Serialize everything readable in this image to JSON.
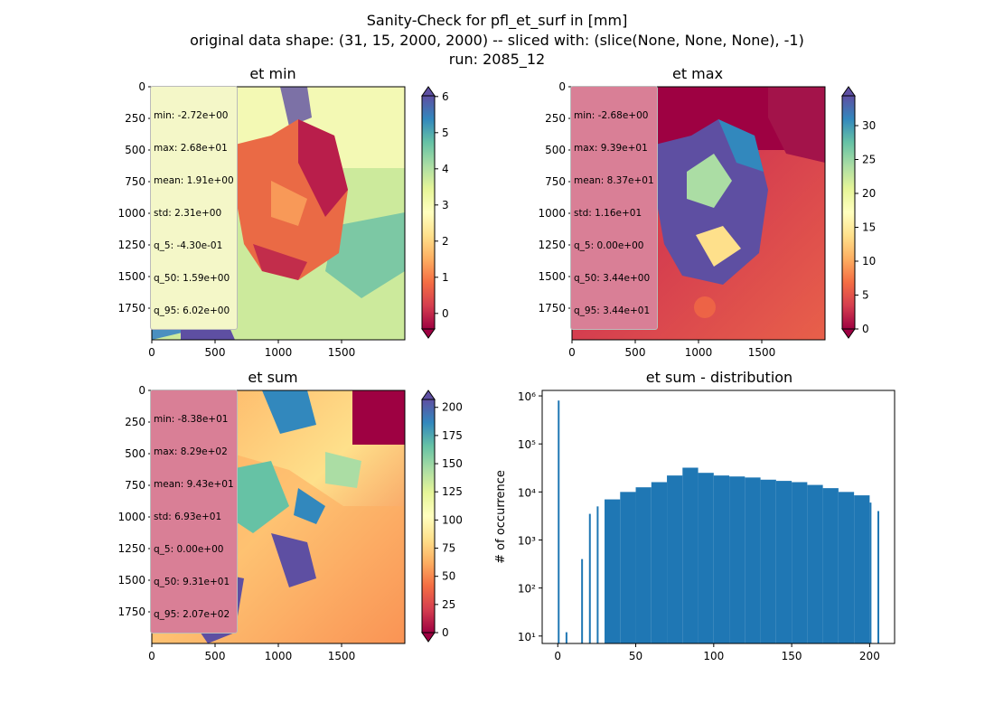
{
  "header": {
    "line1": "Sanity-Check for pfl_et_surf in [mm]",
    "line2": "original data shape: (31, 15, 2000, 2000) -- sliced with: (slice(None, None, None), -1)",
    "line3": "run: 2085_12"
  },
  "panels": [
    {
      "title": "et min",
      "stats": [
        "min: -2.72e+00",
        "max: 2.68e+01",
        "mean: 1.91e+00",
        "std: 2.31e+00",
        "q_5: -4.30e-01",
        "q_50: 1.59e+00",
        "q_95: 6.02e+00"
      ],
      "stats_bg": "#f4f7c8",
      "colorbar_ticks": [
        "6",
        "5",
        "4",
        "3",
        "2",
        "1",
        "0"
      ],
      "xticks": [
        "0",
        "500",
        "1000",
        "1500"
      ],
      "yticks": [
        "1750",
        "1500",
        "1250",
        "1000",
        "750",
        "500",
        "250",
        "0"
      ]
    },
    {
      "title": "et max",
      "stats": [
        "min: -2.68e+00",
        "max: 9.39e+01",
        "mean: 8.37e+01",
        "std: 1.16e+01",
        "q_5: 0.00e+00",
        "q_50: 3.44e+00",
        "q_95: 3.44e+01"
      ],
      "stats_bg": "#d97f96",
      "colorbar_ticks": [
        "30",
        "25",
        "20",
        "15",
        "10",
        "5",
        "0"
      ],
      "xticks": [
        "0",
        "500",
        "1000",
        "1500"
      ],
      "yticks": [
        "1750",
        "1500",
        "1250",
        "1000",
        "750",
        "500",
        "250",
        "0"
      ]
    },
    {
      "title": "et sum",
      "stats": [
        "min: -8.38e+01",
        "max: 8.29e+02",
        "mean: 9.43e+01",
        "std: 6.93e+01",
        "q_5: 0.00e+00",
        "q_50: 9.31e+01",
        "q_95: 2.07e+02"
      ],
      "stats_bg": "#d97f96",
      "colorbar_ticks": [
        "200",
        "175",
        "150",
        "125",
        "100",
        "75",
        "50",
        "25",
        "0"
      ],
      "xticks": [
        "0",
        "500",
        "1000",
        "1500"
      ],
      "yticks": [
        "1750",
        "1500",
        "1250",
        "1000",
        "750",
        "500",
        "250",
        "0"
      ]
    }
  ],
  "colors": {
    "bar": "#1f77b4",
    "colormap": [
      "#9e0142",
      "#d53e4f",
      "#f46d43",
      "#fdae61",
      "#fee08b",
      "#ffffbf",
      "#e6f598",
      "#abdda4",
      "#66c2a5",
      "#3288bd",
      "#5e4fa2"
    ]
  },
  "histogram": {
    "title": "et sum - distribution",
    "ylabel": "# of occurrence",
    "xticks": [
      "0",
      "50",
      "100",
      "150",
      "200"
    ],
    "yticks": [
      "10¹",
      "10²",
      "10³",
      "10⁴",
      "10⁵",
      "10⁶"
    ]
  },
  "chart_data": [
    {
      "type": "heatmap",
      "title": "et min",
      "xlim": [
        0,
        2000
      ],
      "ylim": [
        0,
        2000
      ],
      "colorbar_range": [
        -0.43,
        6.02
      ],
      "colormap": "Spectral"
    },
    {
      "type": "heatmap",
      "title": "et max",
      "xlim": [
        0,
        2000
      ],
      "ylim": [
        0,
        2000
      ],
      "colorbar_range": [
        0,
        34.4
      ],
      "colormap": "Spectral"
    },
    {
      "type": "heatmap",
      "title": "et sum",
      "xlim": [
        0,
        2000
      ],
      "ylim": [
        0,
        2000
      ],
      "colorbar_range": [
        0,
        207
      ],
      "colormap": "Spectral"
    },
    {
      "type": "bar",
      "title": "et sum - distribution",
      "ylabel": "# of occurrence",
      "yscale": "log",
      "xlim": [
        -10,
        216
      ],
      "ylim": [
        7,
        1300000
      ],
      "x": [
        0,
        5,
        15,
        20,
        25,
        30,
        40,
        50,
        60,
        70,
        80,
        90,
        100,
        110,
        120,
        130,
        140,
        150,
        160,
        170,
        180,
        190,
        200,
        205
      ],
      "values": [
        800000,
        12,
        400,
        3500,
        5000,
        7000,
        10000,
        12500,
        16000,
        22000,
        32000,
        25000,
        22000,
        21000,
        20000,
        18000,
        17000,
        16000,
        14000,
        12000,
        10000,
        8500,
        6000,
        4000
      ]
    }
  ]
}
